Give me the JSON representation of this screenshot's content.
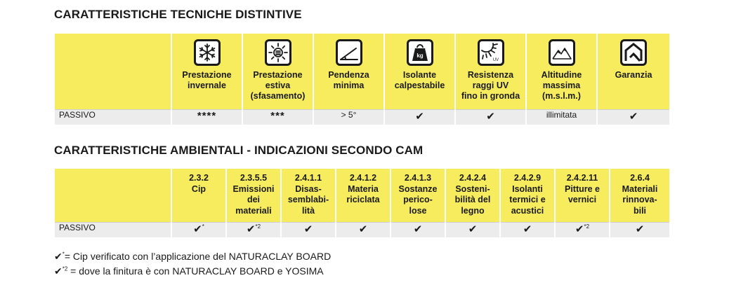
{
  "section1": {
    "title": "CARATTERISTICHE TECNICHE DISTINTIVE",
    "columns": [
      {
        "icon": "snowflake-icon",
        "label_lines": [
          "Prestazione",
          "invernale"
        ]
      },
      {
        "icon": "sun-icon",
        "label_lines": [
          "Prestazione",
          "estiva",
          "(sfasamento)"
        ]
      },
      {
        "icon": "slope-icon",
        "label_lines": [
          "Pendenza",
          "minima"
        ]
      },
      {
        "icon": "weight-kg-icon",
        "label_lines": [
          "Isolante",
          "calpestabile"
        ]
      },
      {
        "icon": "uv-icon",
        "label_lines": [
          "Resistenza",
          "raggi UV",
          "fino in gronda"
        ]
      },
      {
        "icon": "mountain-icon",
        "label_lines": [
          "Altitudine",
          "massima",
          "(m.s.l.m.)"
        ]
      },
      {
        "icon": "house-warranty-icon",
        "label_lines": [
          "Garanzia"
        ]
      }
    ],
    "row": {
      "label": "PASSIVO",
      "values": [
        "****",
        "***",
        "> 5°",
        "✔",
        "✔",
        "illimitata",
        "✔"
      ]
    },
    "icon_kg_text": "kg",
    "icon_uv_text": "UV"
  },
  "section2": {
    "title": "CARATTERISTICHE AMBIENTALI - INDICAZIONI SECONDO CAM",
    "columns": [
      {
        "lines": [
          "2.3.2",
          "Cip"
        ]
      },
      {
        "lines": [
          "2.3.5.5",
          "Emissioni",
          "dei",
          "materiali"
        ]
      },
      {
        "lines": [
          "2.4.1.1",
          "Disas-",
          "semblabi-",
          "lità"
        ]
      },
      {
        "lines": [
          "2.4.1.2",
          "Materia",
          "riciclata"
        ]
      },
      {
        "lines": [
          "2.4.1.3",
          "Sostanze",
          "perico-",
          "lose"
        ]
      },
      {
        "lines": [
          "2.4.2.4",
          "Sosteni-",
          "bilità del",
          "legno"
        ]
      },
      {
        "lines": [
          "2.4.2.9",
          "Isolanti",
          "termici e",
          "acustici"
        ]
      },
      {
        "lines": [
          "2.4.2.11",
          "Pitture e",
          "vernici"
        ]
      },
      {
        "lines": [
          "2.6.4",
          "Materiali",
          "rinnova-",
          "bili"
        ]
      }
    ],
    "row": {
      "label": "PASSIVO",
      "values": [
        {
          "mark": "✔",
          "sup": "*"
        },
        {
          "mark": "✔",
          "sup": "*2"
        },
        {
          "mark": "✔",
          "sup": ""
        },
        {
          "mark": "✔",
          "sup": ""
        },
        {
          "mark": "✔",
          "sup": ""
        },
        {
          "mark": "✔",
          "sup": ""
        },
        {
          "mark": "✔",
          "sup": ""
        },
        {
          "mark": "✔",
          "sup": "*2"
        },
        {
          "mark": "✔",
          "sup": ""
        }
      ]
    }
  },
  "notes": [
    {
      "mark": "✔",
      "sup": "*",
      "text": "= Cip verificato con l’applicazione del NATURACLAY BOARD"
    },
    {
      "mark": "✔",
      "sup": "*2",
      "text": " = dove la finitura è con NATURACLAY BOARD e YOSIMA"
    }
  ],
  "colors": {
    "header_yellow": "#f6ec5d",
    "row_gray": "#ececec",
    "text": "#1a1a1a"
  }
}
